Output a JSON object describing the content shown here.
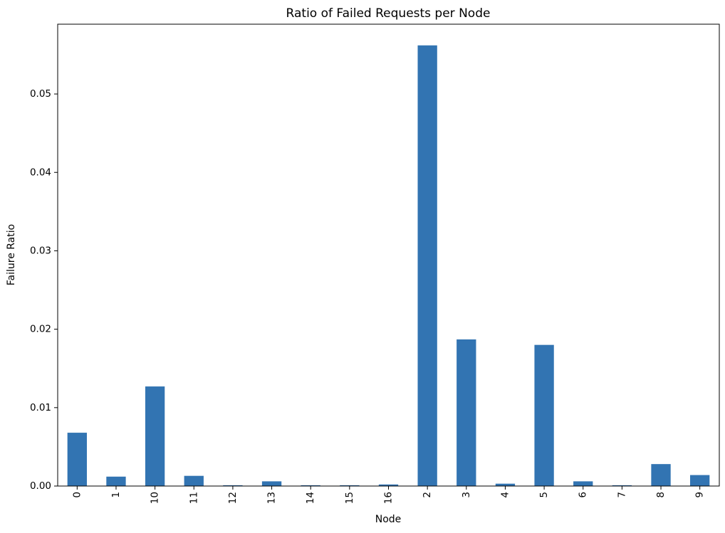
{
  "chart_data": {
    "type": "bar",
    "title": "Ratio of Failed Requests per Node",
    "xlabel": "Node",
    "ylabel": "Failure Ratio",
    "categories": [
      "0",
      "1",
      "10",
      "11",
      "12",
      "13",
      "14",
      "15",
      "16",
      "2",
      "3",
      "4",
      "5",
      "6",
      "7",
      "8",
      "9"
    ],
    "values": [
      0.0068,
      0.0012,
      0.0127,
      0.0013,
      0.0001,
      0.0006,
      0.0001,
      0.0001,
      0.0002,
      0.0562,
      0.0187,
      0.0003,
      0.018,
      0.0006,
      0.0001,
      0.0028,
      0.0014
    ],
    "ylim": [
      0,
      0.0589
    ],
    "yticks": [
      0.0,
      0.01,
      0.02,
      0.03,
      0.04,
      0.05
    ],
    "ytick_labels": [
      "0.00",
      "0.01",
      "0.02",
      "0.03",
      "0.04",
      "0.05"
    ],
    "bar_color": "#3274b2",
    "grid": false,
    "legend": "none"
  }
}
